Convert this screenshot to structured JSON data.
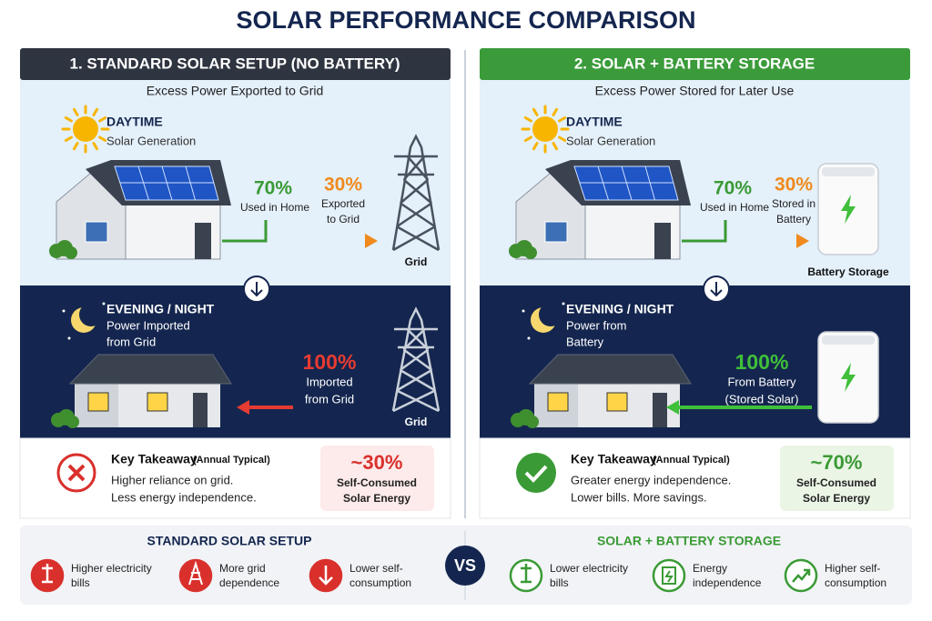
{
  "title": "SOLAR PERFORMANCE COMPARISON",
  "panels": [
    {
      "header": "1. STANDARD SOLAR SETUP (NO BATTERY)",
      "subtitle": "Excess Power Exported to Grid",
      "day": {
        "label": "DAYTIME",
        "caption": "Solar Generation",
        "used": {
          "value": "70%",
          "label": [
            "Used in Home"
          ]
        },
        "excess": {
          "value": "30%",
          "label": [
            "Exported",
            "to Grid"
          ]
        },
        "device": "Grid"
      },
      "night": {
        "label": "EVENING / NIGHT",
        "caption": [
          "Power Imported",
          "from Grid"
        ],
        "flow": {
          "value": "100%",
          "label": [
            "Imported",
            "from Grid"
          ]
        },
        "device": "Grid"
      },
      "takeaway": {
        "title": "Key Takeaway",
        "note": "(Annual Typical)",
        "lines": [
          "Higher reliance on grid.",
          "Less energy independence."
        ],
        "value": "~30%",
        "label": [
          "Self-Consumed",
          "Solar Energy"
        ]
      }
    },
    {
      "header": "2. SOLAR + BATTERY STORAGE",
      "subtitle": "Excess Power Stored for Later Use",
      "day": {
        "label": "DAYTIME",
        "caption": "Solar Generation",
        "used": {
          "value": "70%",
          "label": [
            "Used in Home"
          ]
        },
        "excess": {
          "value": "30%",
          "label": [
            "Stored in",
            "Battery"
          ]
        },
        "device": "Battery Storage"
      },
      "night": {
        "label": "EVENING / NIGHT",
        "caption": [
          "Power from",
          "Battery"
        ],
        "flow": {
          "value": "100%",
          "label": [
            "From Battery",
            "(Stored Solar)"
          ]
        }
      },
      "takeaway": {
        "title": "Key Takeaway",
        "note": "(Annual Typical)",
        "lines": [
          "Greater energy independence.",
          "Lower bills. More savings."
        ],
        "value": "~70%",
        "label": [
          "Self-Consumed",
          "Solar Energy"
        ]
      }
    }
  ],
  "summary": {
    "vs": "VS",
    "columns": [
      {
        "title": "STANDARD SOLAR SETUP",
        "items": [
          [
            "Higher electricity",
            "bills"
          ],
          [
            "More grid",
            "dependence"
          ],
          [
            "Lower self-",
            "consumption"
          ]
        ]
      },
      {
        "title": "SOLAR + BATTERY STORAGE",
        "items": [
          [
            "Lower electricity",
            "bills"
          ],
          [
            "Energy",
            "independence"
          ],
          [
            "Higher self-",
            "consumption"
          ]
        ]
      }
    ]
  }
}
